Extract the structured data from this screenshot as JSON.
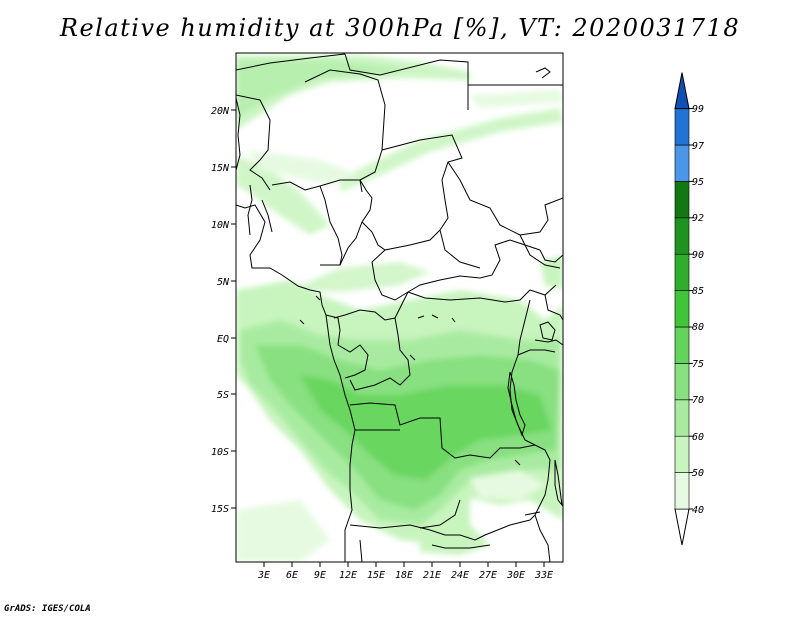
{
  "title": "Relative humidity at 300hPa [%], VT: 2020031718",
  "credit": "GrADS: IGES/COLA",
  "map": {
    "variable": "Relative humidity",
    "level": "300hPa",
    "units": "%",
    "valid_time": "2020031718",
    "projection": "lat-lon",
    "lon_range": [
      "0",
      "35E"
    ],
    "lat_range": [
      "20S",
      "25N"
    ],
    "lon_labels": [
      "3E",
      "6E",
      "9E",
      "12E",
      "15E",
      "18E",
      "21E",
      "24E",
      "27E",
      "30E",
      "33E"
    ],
    "lat_labels": [
      "20N",
      "15N",
      "10N",
      "5N",
      "EQ",
      "5S",
      "10S",
      "15S"
    ]
  },
  "colorbar": {
    "levels": [
      "40",
      "50",
      "60",
      "70",
      "75",
      "80",
      "85",
      "90",
      "92",
      "95",
      "97",
      "99"
    ],
    "colors": [
      "#ffffff",
      "#e6fae1",
      "#c8f4be",
      "#a8eba0",
      "#88e080",
      "#64d35c",
      "#3fc43a",
      "#2eae2a",
      "#1f9320",
      "#137813",
      "#4a96e8",
      "#2372d6",
      "#0f50b4"
    ]
  }
}
